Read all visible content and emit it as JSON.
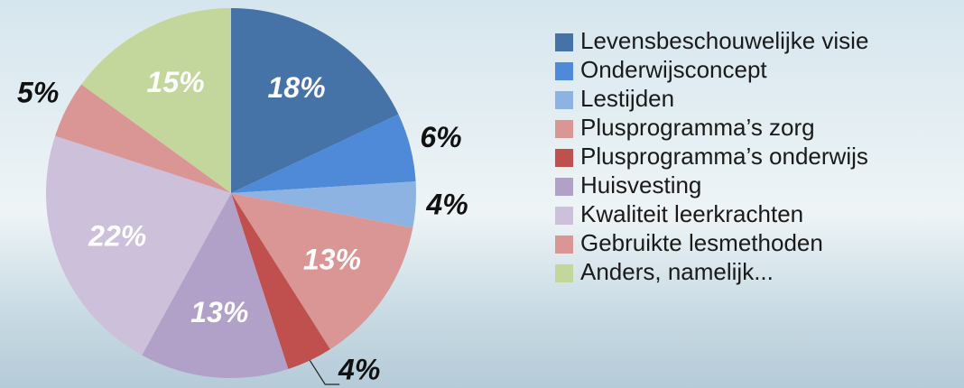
{
  "chart_data": {
    "type": "pie",
    "categories": [
      "Levensbeschouwelijke visie",
      "Onderwijsconcept",
      "Lestijden",
      "Plusprogramma’s zorg",
      "Plusprogramma’s onderwijs",
      "Huisvesting",
      "Kwaliteit leerkrachten",
      "Gebruikte lesmethoden",
      "Anders, namelijk..."
    ],
    "values": [
      18,
      6,
      4,
      13,
      4,
      13,
      22,
      5,
      15
    ],
    "value_labels": [
      "18%",
      "6%",
      "4%",
      "13%",
      "4%",
      "13%",
      "22%",
      "5%",
      "15%"
    ],
    "colors": [
      "#4572a7",
      "#4f8ad8",
      "#8db3e2",
      "#da9694",
      "#c0504d",
      "#b1a0c7",
      "#ccc0da",
      "#d99694",
      "#c3d69b"
    ]
  }
}
